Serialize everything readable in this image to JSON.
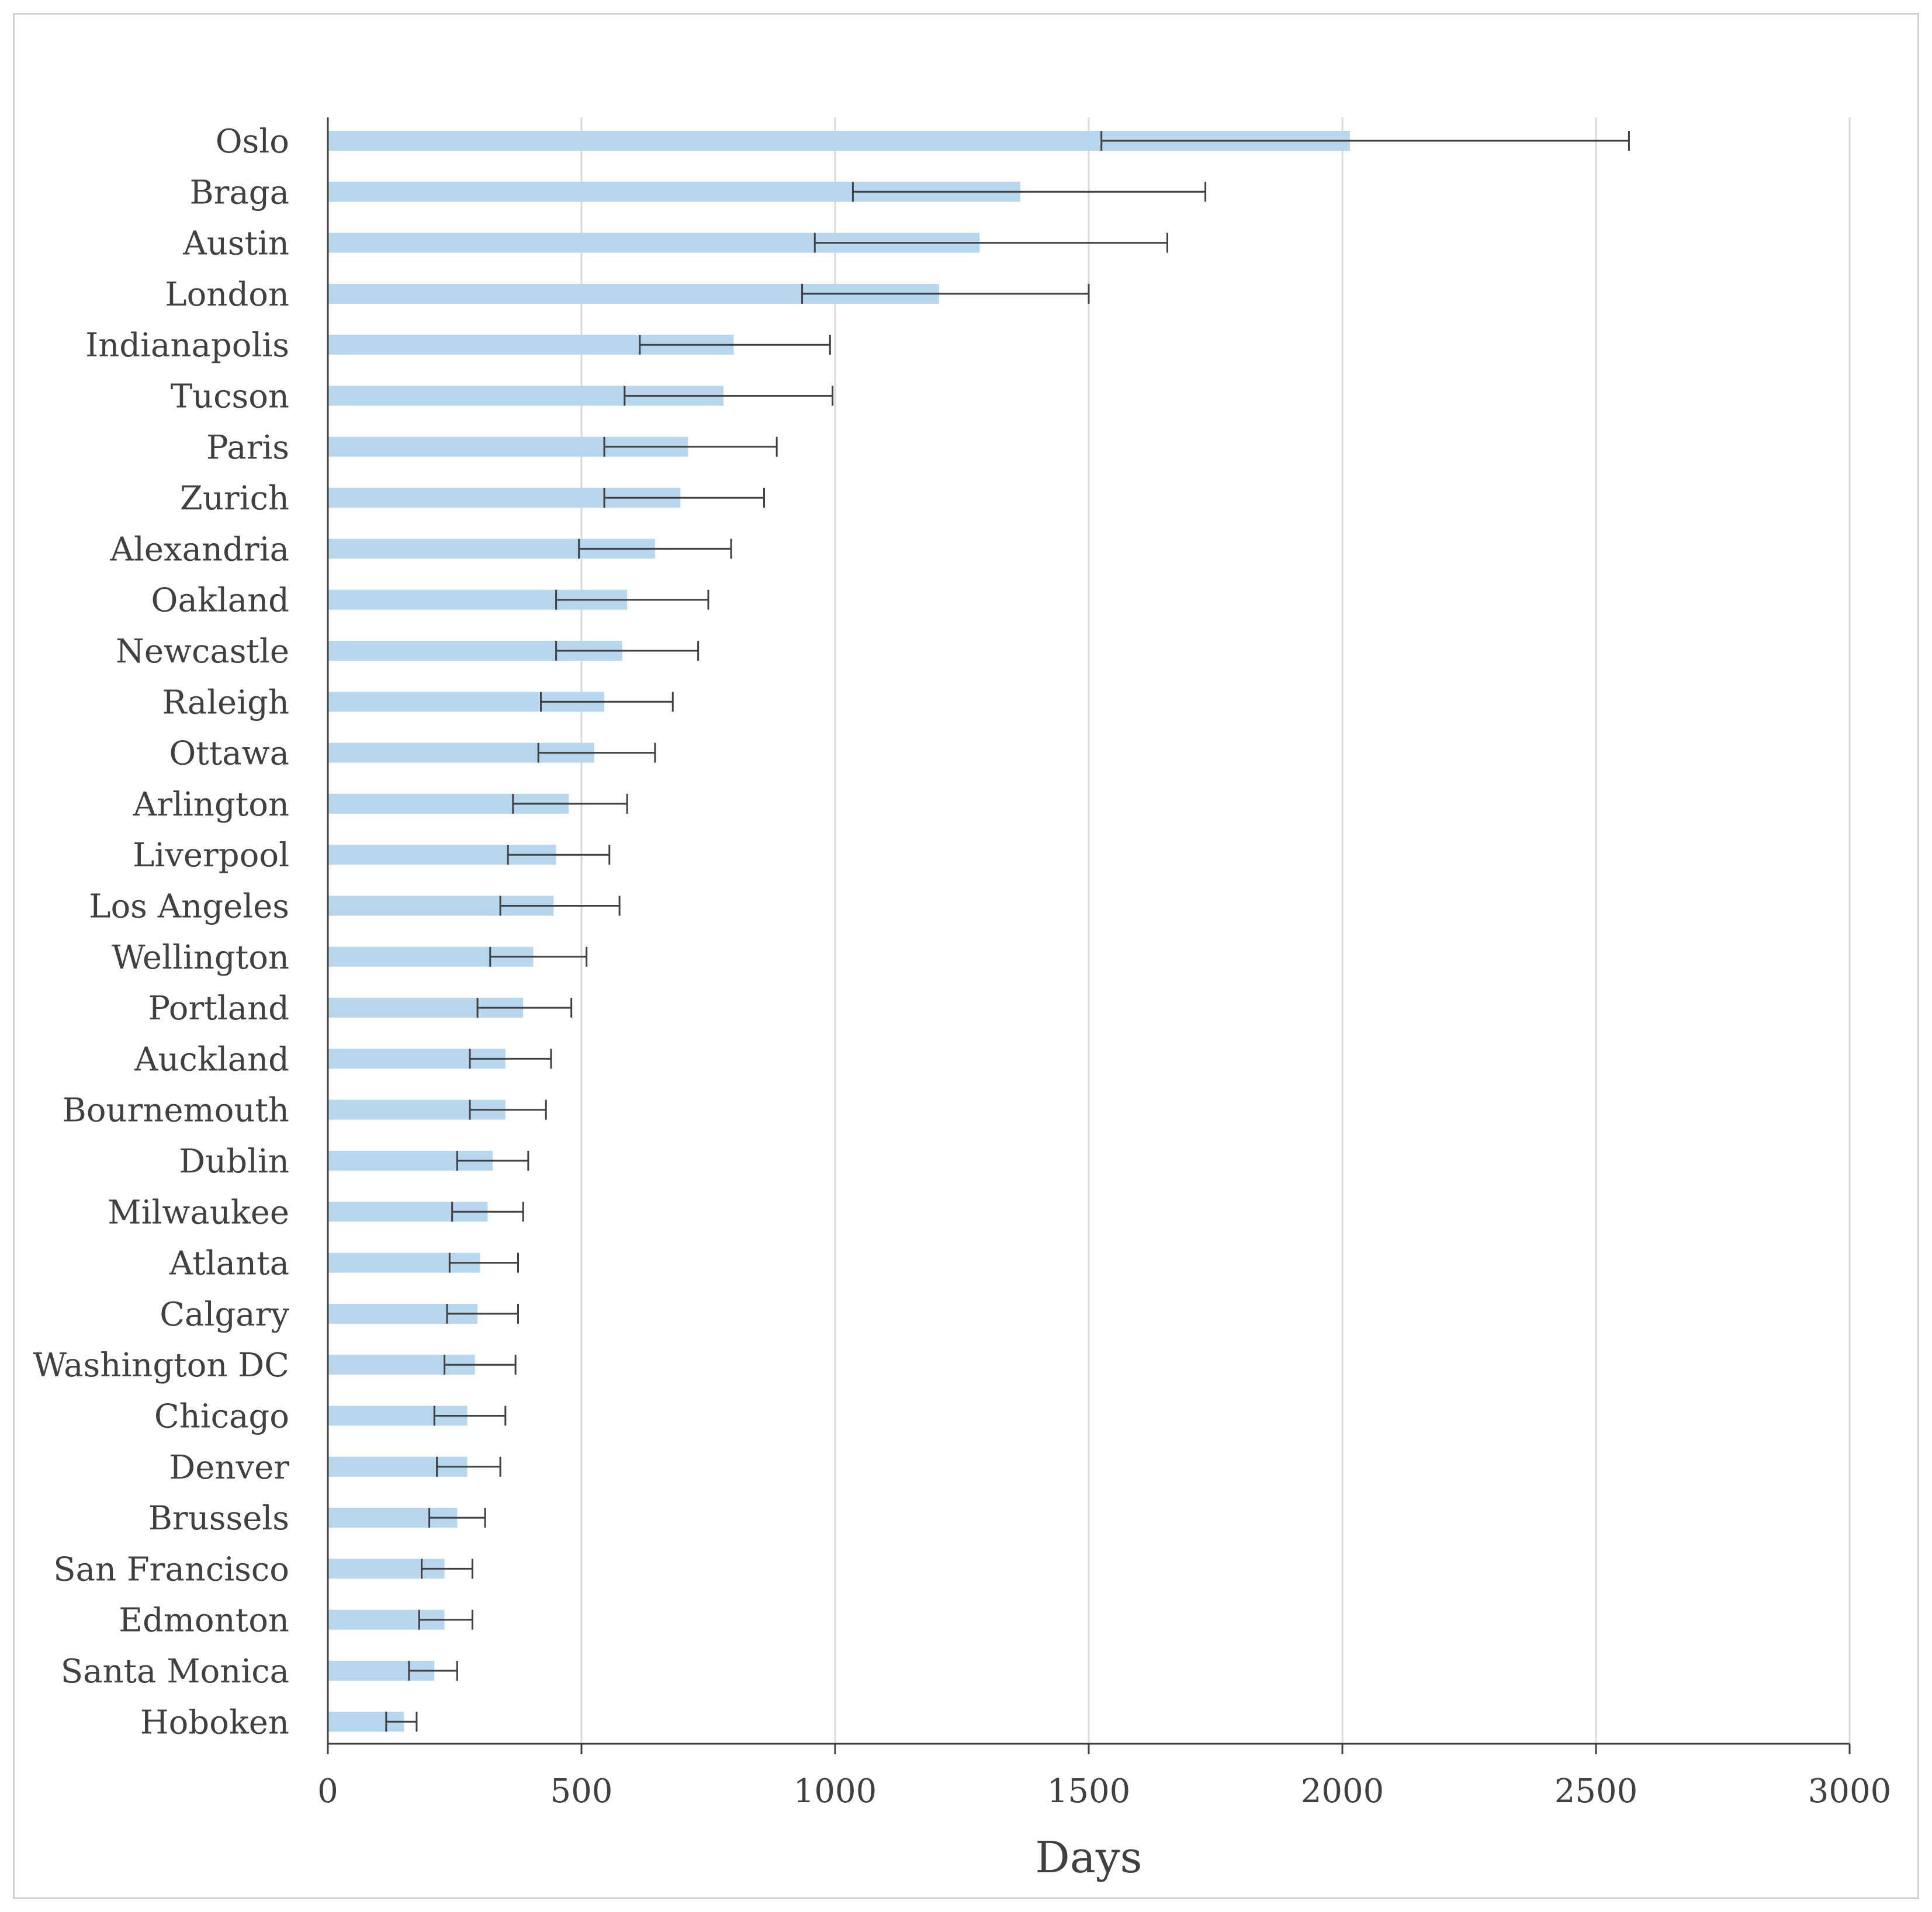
{
  "chart_data": {
    "type": "bar",
    "orientation": "horizontal",
    "title": "",
    "xlabel": "Days",
    "ylabel": "",
    "xlim": [
      0,
      3000
    ],
    "xticks": [
      0,
      500,
      1000,
      1500,
      2000,
      2500,
      3000
    ],
    "grid": "vertical",
    "legend": "none",
    "bar_color": "#b7d7ee",
    "error_bar_color": "#404040",
    "categories": [
      "Oslo",
      "Braga",
      "Austin",
      "London",
      "Indianapolis",
      "Tucson",
      "Paris",
      "Zurich",
      "Alexandria",
      "Oakland",
      "Newcastle",
      "Raleigh",
      "Ottawa",
      "Arlington",
      "Liverpool",
      "Los Angeles",
      "Wellington",
      "Portland",
      "Auckland",
      "Bournemouth",
      "Dublin",
      "Milwaukee",
      "Atlanta",
      "Calgary",
      "Washington DC",
      "Chicago",
      "Denver",
      "Brussels",
      "San Francisco",
      "Edmonton",
      "Santa Monica",
      "Hoboken"
    ],
    "values": [
      2015,
      1365,
      1285,
      1205,
      800,
      780,
      710,
      695,
      645,
      590,
      580,
      545,
      525,
      475,
      450,
      445,
      405,
      385,
      350,
      350,
      325,
      315,
      300,
      295,
      290,
      275,
      275,
      255,
      230,
      230,
      210,
      150
    ],
    "error_low": [
      1525,
      1035,
      960,
      935,
      615,
      585,
      545,
      545,
      495,
      450,
      450,
      420,
      415,
      365,
      355,
      340,
      320,
      295,
      280,
      280,
      255,
      245,
      240,
      235,
      230,
      210,
      215,
      200,
      185,
      180,
      160,
      115
    ],
    "error_high": [
      2565,
      1730,
      1655,
      1500,
      990,
      995,
      885,
      860,
      795,
      750,
      730,
      680,
      645,
      590,
      555,
      575,
      510,
      480,
      440,
      430,
      395,
      385,
      375,
      375,
      370,
      350,
      340,
      310,
      285,
      285,
      255,
      175
    ]
  }
}
